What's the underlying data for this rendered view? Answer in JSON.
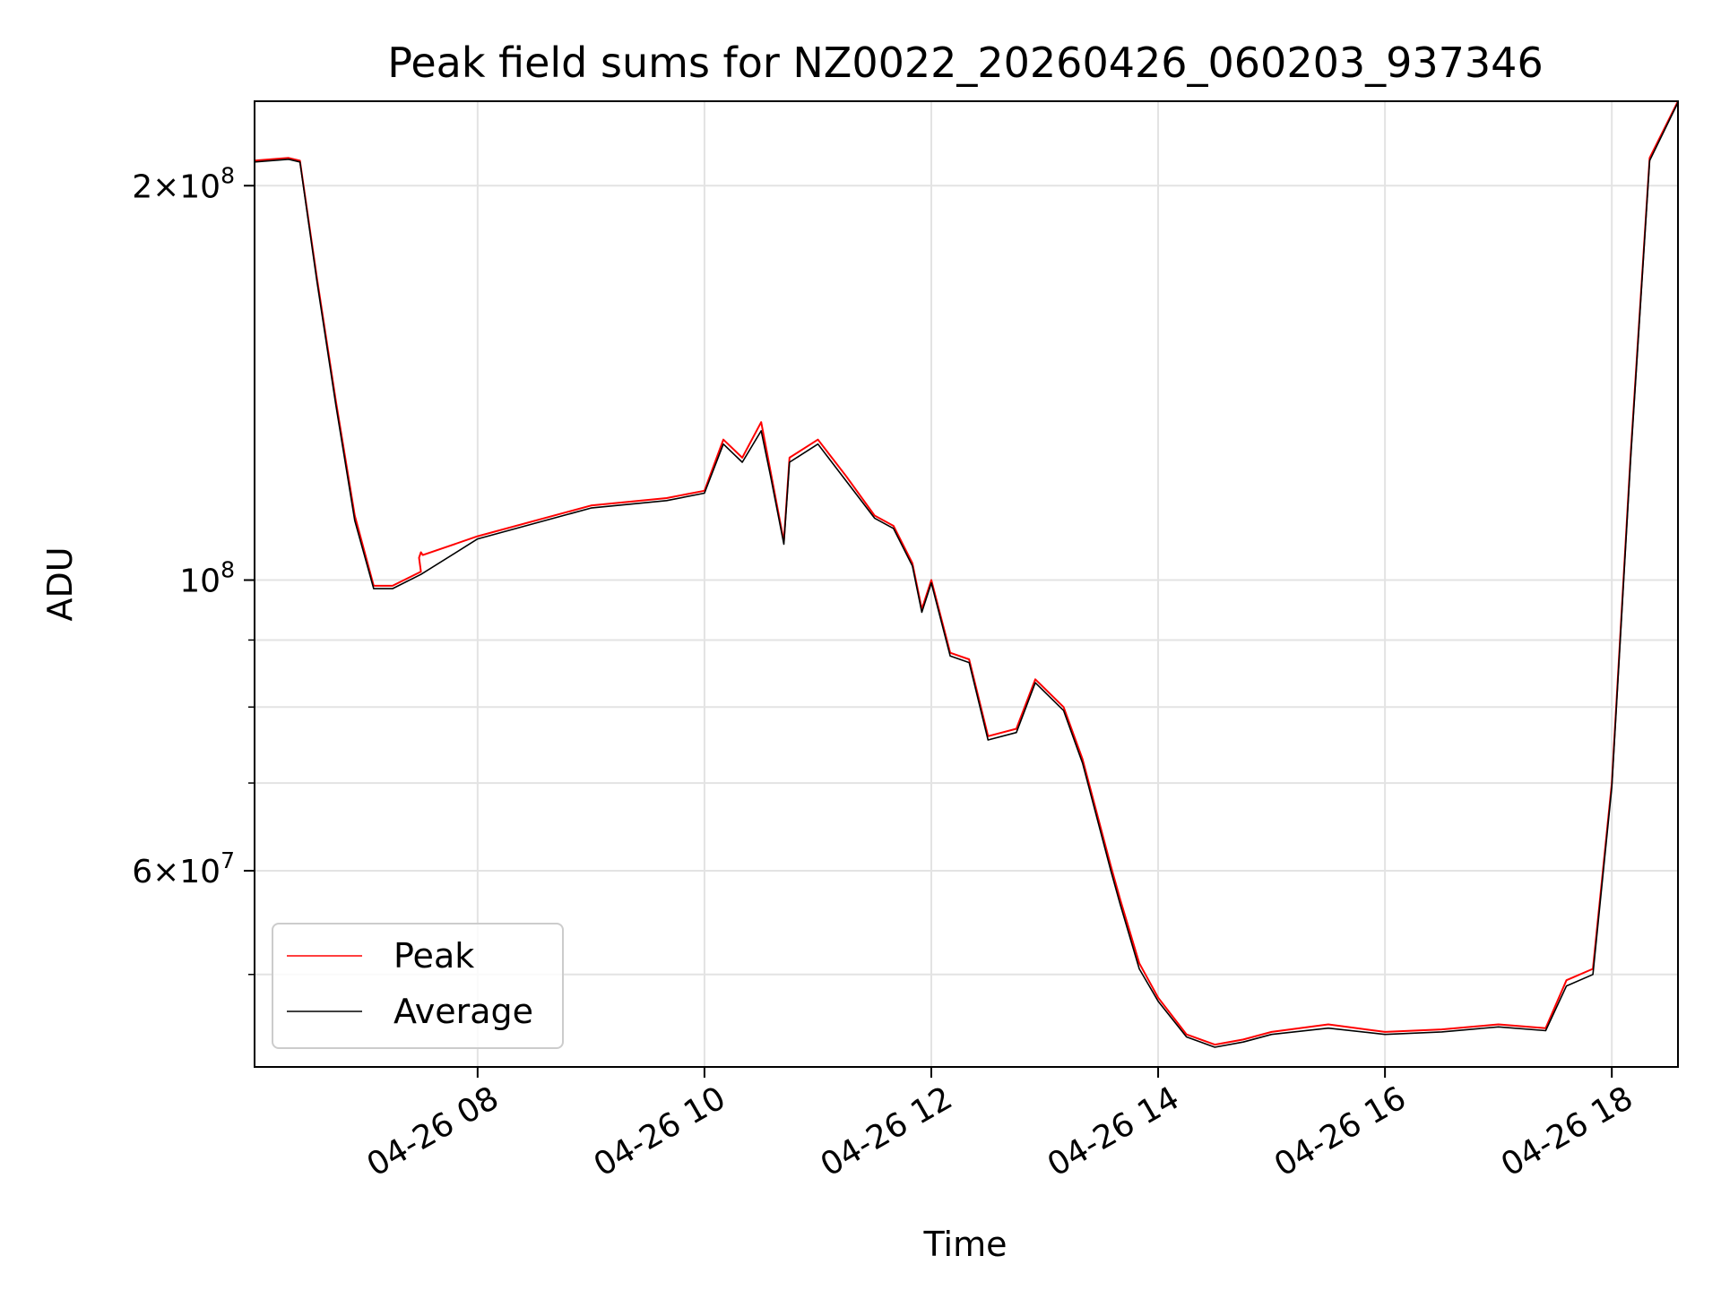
{
  "chart_data": {
    "type": "line",
    "title": "Peak field sums for NZ0022_20260426_060203_937346",
    "xlabel": "Time",
    "ylabel": "ADU",
    "x_axis": {
      "kind": "date",
      "range": [
        "2026-04-26T06:02",
        "2026-04-26T18:35"
      ],
      "tick_values": [
        "2026-04-26T08:00",
        "2026-04-26T10:00",
        "2026-04-26T12:00",
        "2026-04-26T14:00",
        "2026-04-26T16:00",
        "2026-04-26T18:00"
      ],
      "tick_labels": [
        "04-26 08",
        "04-26 10",
        "04-26 12",
        "04-26 14",
        "04-26 16",
        "04-26 18"
      ],
      "tick_rotation_deg": 30
    },
    "y_axis": {
      "scale": "log",
      "range": [
        42500000,
        232000000
      ],
      "major_ticks": [
        60000000,
        100000000,
        200000000
      ],
      "major_tick_labels": [
        {
          "mantissa": "6",
          "exponent": "7"
        },
        {
          "mantissa": "",
          "exponent": "8"
        },
        {
          "mantissa": "2",
          "exponent": "8"
        }
      ],
      "minor_ticks": [
        50000000,
        70000000,
        80000000,
        90000000
      ]
    },
    "grid": true,
    "legend_position": "lower-left",
    "series": [
      {
        "name": "Peak",
        "color": "#ff0000",
        "points": [
          [
            "2026-04-26T06:02",
            209000000
          ],
          [
            "2026-04-26T06:20",
            210000000
          ],
          [
            "2026-04-26T06:26",
            209000000
          ],
          [
            "2026-04-26T06:35",
            170000000
          ],
          [
            "2026-04-26T06:45",
            137000000
          ],
          [
            "2026-04-26T06:55",
            112000000
          ],
          [
            "2026-04-26T07:05",
            99000000
          ],
          [
            "2026-04-26T07:15",
            99000000
          ],
          [
            "2026-04-26T07:30",
            101500000
          ],
          [
            "2026-04-26T07:29",
            104000000
          ],
          [
            "2026-04-26T07:30",
            105000000
          ],
          [
            "2026-04-26T07:31",
            104500000
          ],
          [
            "2026-04-26T08:00",
            108000000
          ],
          [
            "2026-04-26T09:00",
            114000000
          ],
          [
            "2026-04-26T09:40",
            115500000
          ],
          [
            "2026-04-26T10:00",
            117000000
          ],
          [
            "2026-04-26T10:10",
            128000000
          ],
          [
            "2026-04-26T10:20",
            124000000
          ],
          [
            "2026-04-26T10:30",
            132000000
          ],
          [
            "2026-04-26T10:35",
            121000000
          ],
          [
            "2026-04-26T10:42",
            107000000
          ],
          [
            "2026-04-26T10:45",
            124000000
          ],
          [
            "2026-04-26T11:00",
            128000000
          ],
          [
            "2026-04-26T11:15",
            120000000
          ],
          [
            "2026-04-26T11:30",
            112000000
          ],
          [
            "2026-04-26T11:40",
            110000000
          ],
          [
            "2026-04-26T11:50",
            103000000
          ],
          [
            "2026-04-26T11:55",
            95000000
          ],
          [
            "2026-04-26T12:00",
            100000000
          ],
          [
            "2026-04-26T12:10",
            88000000
          ],
          [
            "2026-04-26T12:20",
            87000000
          ],
          [
            "2026-04-26T12:30",
            76000000
          ],
          [
            "2026-04-26T12:45",
            77000000
          ],
          [
            "2026-04-26T12:55",
            84000000
          ],
          [
            "2026-04-26T13:10",
            80000000
          ],
          [
            "2026-04-26T13:20",
            73000000
          ],
          [
            "2026-04-26T13:35",
            60500000
          ],
          [
            "2026-04-26T13:40",
            57000000
          ],
          [
            "2026-04-26T13:50",
            51000000
          ],
          [
            "2026-04-26T14:00",
            48000000
          ],
          [
            "2026-04-26T14:15",
            45000000
          ],
          [
            "2026-04-26T14:30",
            44200000
          ],
          [
            "2026-04-26T14:45",
            44600000
          ],
          [
            "2026-04-26T15:00",
            45200000
          ],
          [
            "2026-04-26T15:30",
            45800000
          ],
          [
            "2026-04-26T16:00",
            45200000
          ],
          [
            "2026-04-26T16:30",
            45400000
          ],
          [
            "2026-04-26T17:00",
            45800000
          ],
          [
            "2026-04-26T17:25",
            45500000
          ],
          [
            "2026-04-26T17:36",
            49500000
          ],
          [
            "2026-04-26T17:50",
            50500000
          ],
          [
            "2026-04-26T18:00",
            70000000
          ],
          [
            "2026-04-26T18:10",
            125000000
          ],
          [
            "2026-04-26T18:20",
            210000000
          ],
          [
            "2026-04-26T18:35",
            232000000
          ]
        ]
      },
      {
        "name": "Average",
        "color": "#000000",
        "points": [
          [
            "2026-04-26T06:02",
            208500000
          ],
          [
            "2026-04-26T06:20",
            209500000
          ],
          [
            "2026-04-26T06:26",
            208500000
          ],
          [
            "2026-04-26T06:35",
            169000000
          ],
          [
            "2026-04-26T06:45",
            136000000
          ],
          [
            "2026-04-26T06:55",
            111000000
          ],
          [
            "2026-04-26T07:05",
            98500000
          ],
          [
            "2026-04-26T07:15",
            98500000
          ],
          [
            "2026-04-26T07:30",
            101000000
          ],
          [
            "2026-04-26T08:00",
            107500000
          ],
          [
            "2026-04-26T09:00",
            113500000
          ],
          [
            "2026-04-26T09:40",
            115000000
          ],
          [
            "2026-04-26T10:00",
            116500000
          ],
          [
            "2026-04-26T10:10",
            127000000
          ],
          [
            "2026-04-26T10:20",
            123000000
          ],
          [
            "2026-04-26T10:30",
            130000000
          ],
          [
            "2026-04-26T10:35",
            120000000
          ],
          [
            "2026-04-26T10:42",
            106500000
          ],
          [
            "2026-04-26T10:45",
            123000000
          ],
          [
            "2026-04-26T11:00",
            127000000
          ],
          [
            "2026-04-26T11:15",
            119000000
          ],
          [
            "2026-04-26T11:30",
            111500000
          ],
          [
            "2026-04-26T11:40",
            109500000
          ],
          [
            "2026-04-26T11:50",
            102500000
          ],
          [
            "2026-04-26T11:55",
            94500000
          ],
          [
            "2026-04-26T12:00",
            99500000
          ],
          [
            "2026-04-26T12:10",
            87500000
          ],
          [
            "2026-04-26T12:20",
            86500000
          ],
          [
            "2026-04-26T12:30",
            75500000
          ],
          [
            "2026-04-26T12:45",
            76500000
          ],
          [
            "2026-04-26T12:55",
            83500000
          ],
          [
            "2026-04-26T13:10",
            79500000
          ],
          [
            "2026-04-26T13:20",
            72500000
          ],
          [
            "2026-04-26T13:35",
            60000000
          ],
          [
            "2026-04-26T13:40",
            56500000
          ],
          [
            "2026-04-26T13:50",
            50500000
          ],
          [
            "2026-04-26T14:00",
            47700000
          ],
          [
            "2026-04-26T14:15",
            44800000
          ],
          [
            "2026-04-26T14:30",
            44000000
          ],
          [
            "2026-04-26T14:45",
            44400000
          ],
          [
            "2026-04-26T15:00",
            45000000
          ],
          [
            "2026-04-26T15:30",
            45500000
          ],
          [
            "2026-04-26T16:00",
            45000000
          ],
          [
            "2026-04-26T16:30",
            45200000
          ],
          [
            "2026-04-26T17:00",
            45600000
          ],
          [
            "2026-04-26T17:25",
            45300000
          ],
          [
            "2026-04-26T17:36",
            49000000
          ],
          [
            "2026-04-26T17:50",
            50000000
          ],
          [
            "2026-04-26T18:00",
            69500000
          ],
          [
            "2026-04-26T18:10",
            124000000
          ],
          [
            "2026-04-26T18:20",
            209000000
          ],
          [
            "2026-04-26T18:35",
            231500000
          ]
        ]
      }
    ]
  }
}
